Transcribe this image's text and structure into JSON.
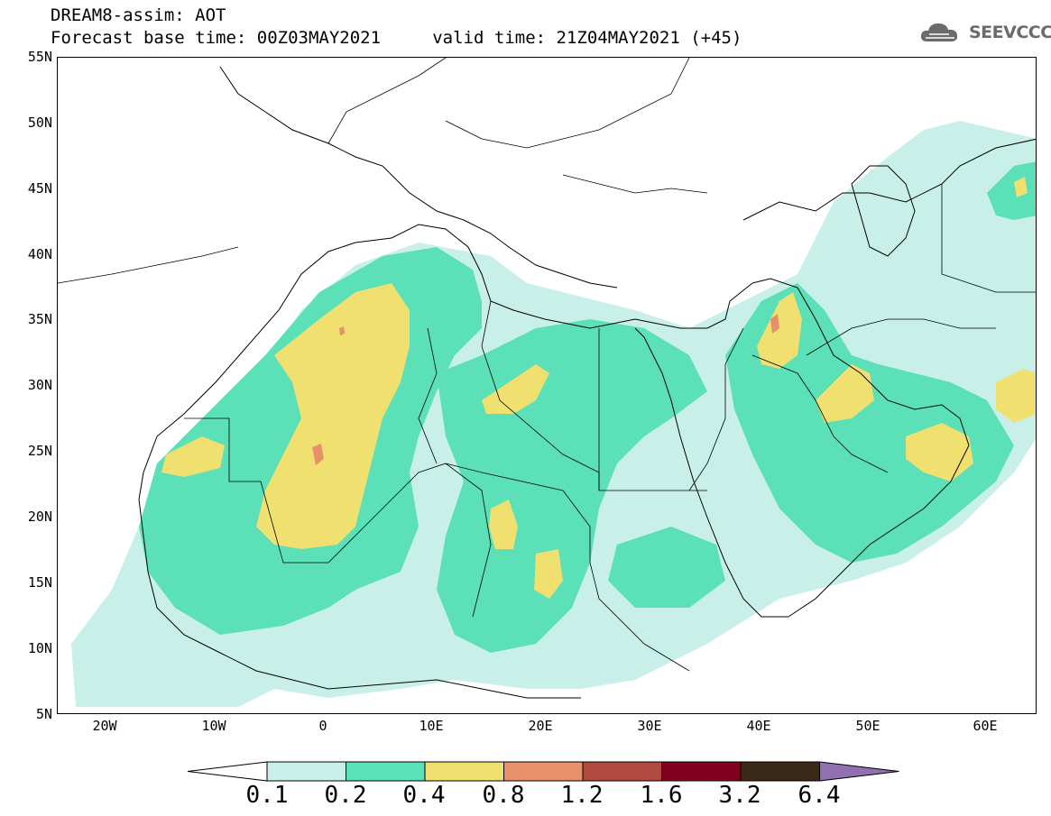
{
  "header": {
    "title_line1": "DREAM8-assim: AOT",
    "title_line2": "Forecast base time: 00Z03MAY2021     valid time: 21Z04MAY2021 (+45)"
  },
  "logo": {
    "text": "SEEVCCC",
    "icon": "cloud-icon"
  },
  "map": {
    "lon_range": [
      -25,
      65
    ],
    "lat_range": [
      5,
      55
    ],
    "lat_labels": [
      "55N",
      "50N",
      "45N",
      "40N",
      "35N",
      "30N",
      "25N",
      "20N",
      "15N",
      "10N",
      "5N"
    ],
    "lon_labels": [
      "20W",
      "10W",
      "0",
      "10E",
      "20E",
      "30E",
      "40E",
      "50E",
      "60E"
    ]
  },
  "colorbar": {
    "colors": [
      "#ffffff",
      "#c8f0e8",
      "#5ce0b8",
      "#f0e070",
      "#e8906c",
      "#b04a3e",
      "#800020",
      "#3a2818",
      "#9070b0"
    ],
    "labels": [
      "0.1",
      "0.2",
      "0.4",
      "0.8",
      "1.2",
      "1.6",
      "3.2",
      "6.4"
    ]
  }
}
